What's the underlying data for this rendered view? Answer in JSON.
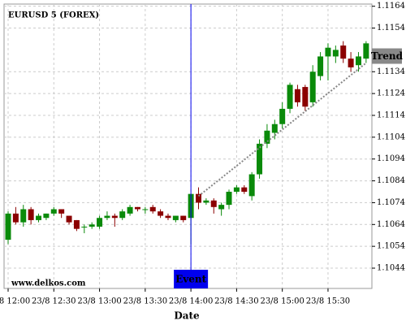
{
  "chart_data": {
    "type": "candlestick",
    "title": "EURUSD 5 (FOREX)",
    "watermark": "www.delkos.com",
    "x_label": "Date",
    "categories": [
      "23/8 12:00",
      null,
      null,
      null,
      null,
      null,
      "23/8 12:30",
      null,
      null,
      null,
      null,
      null,
      "23/8 13:00",
      null,
      null,
      null,
      null,
      null,
      "23/8 13:30",
      null,
      null,
      null,
      null,
      null,
      "23/8 14:00",
      null,
      null,
      null,
      null,
      null,
      "23/8 14:30",
      null,
      null,
      null,
      null,
      null,
      "23/8 15:00",
      null,
      null,
      null,
      null,
      null,
      "23/8 15:30",
      null,
      null,
      null,
      null,
      null
    ],
    "open": [
      1.1057,
      1.1069,
      1.1065,
      1.1071,
      1.1066,
      1.1067,
      1.1069,
      1.1071,
      1.1068,
      1.1066,
      1.1063,
      1.1063,
      1.1063,
      1.1067,
      1.1068,
      1.1067,
      1.1069,
      1.1072,
      1.1071,
      1.1072,
      1.107,
      1.1068,
      1.1066,
      1.1068,
      1.1067,
      1.1078,
      1.1074,
      1.1075,
      1.1071,
      1.1073,
      1.1079,
      1.1081,
      1.1077,
      1.1087,
      1.1101,
      1.1106,
      1.111,
      1.1117,
      1.1126,
      1.1127,
      1.112,
      1.1132,
      1.1141,
      1.1141,
      1.1146,
      1.114,
      1.1137,
      1.114
    ],
    "high": [
      1.107,
      1.1072,
      1.1073,
      1.1072,
      1.1069,
      1.1069,
      1.1072,
      1.1071,
      1.1068,
      1.1066,
      1.1064,
      1.1065,
      1.1068,
      1.107,
      1.1069,
      1.1071,
      1.1073,
      1.1072,
      1.1072,
      1.1073,
      1.1071,
      1.1069,
      1.1068,
      1.1068,
      1.1078,
      1.1081,
      1.1076,
      1.1076,
      1.1074,
      1.108,
      1.1082,
      1.1082,
      1.1088,
      1.1103,
      1.111,
      1.1112,
      1.112,
      1.1129,
      1.1128,
      1.1128,
      1.1137,
      1.1143,
      1.1147,
      1.1146,
      1.1148,
      1.1143,
      1.1143,
      1.1148
    ],
    "low": [
      1.1055,
      1.1064,
      1.1063,
      1.1064,
      1.1065,
      1.1066,
      1.1068,
      1.1067,
      1.1064,
      1.1061,
      1.106,
      1.1062,
      1.1062,
      1.1066,
      1.1063,
      1.1066,
      1.1068,
      1.107,
      1.1069,
      1.1069,
      1.1067,
      1.1066,
      1.1065,
      1.1065,
      1.1055,
      1.1071,
      1.1073,
      1.1069,
      1.1068,
      1.1071,
      1.1078,
      1.1078,
      1.1075,
      1.1085,
      1.1099,
      1.1103,
      1.1108,
      1.1115,
      1.1118,
      1.1116,
      1.1118,
      1.113,
      1.113,
      1.1138,
      1.1138,
      1.1134,
      1.1134,
      1.1138
    ],
    "close": [
      1.1069,
      1.1065,
      1.1071,
      1.1066,
      1.1068,
      1.1069,
      1.1071,
      1.1069,
      1.1065,
      1.1062,
      1.1063,
      1.1064,
      1.1067,
      1.1068,
      1.1067,
      1.107,
      1.1072,
      1.1071,
      1.1071,
      1.107,
      1.1068,
      1.1067,
      1.1068,
      1.1066,
      1.1078,
      1.1074,
      1.1075,
      1.1072,
      1.1073,
      1.1079,
      1.1081,
      1.1079,
      1.1087,
      1.1101,
      1.1107,
      1.111,
      1.1117,
      1.1128,
      1.112,
      1.1118,
      1.1134,
      1.1141,
      1.1145,
      1.1144,
      1.114,
      1.1136,
      1.1141,
      1.1147
    ],
    "up_color": "#0a8a0a",
    "down_color": "#8b0000",
    "ylim": [
      1.10347,
      1.1165
    ],
    "yticks": [
      1.1044,
      1.1054,
      1.1064,
      1.1074,
      1.1084,
      1.1094,
      1.1104,
      1.1114,
      1.1124,
      1.1134,
      1.1154,
      1.1164
    ],
    "grid": true,
    "event": {
      "label": "Event",
      "index": 24,
      "color": "#0000ee"
    },
    "trend": {
      "label": "Trend",
      "from": [
        25,
        1.1077
      ],
      "to": [
        47,
        1.1138
      ],
      "color": "#888888"
    }
  }
}
